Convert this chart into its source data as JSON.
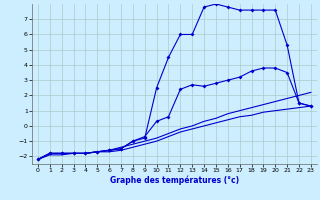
{
  "xlabel": "Graphe des températures (°c)",
  "bg_color": "#cceeff",
  "grid_color": "#aacccc",
  "line_color": "#0000cc",
  "xlim": [
    -0.5,
    23.5
  ],
  "ylim": [
    -2.5,
    8.0
  ],
  "xticks": [
    0,
    1,
    2,
    3,
    4,
    5,
    6,
    7,
    8,
    9,
    10,
    11,
    12,
    13,
    14,
    15,
    16,
    17,
    18,
    19,
    20,
    21,
    22,
    23
  ],
  "yticks": [
    -2,
    -1,
    0,
    1,
    2,
    3,
    4,
    5,
    6,
    7
  ],
  "line1_x": [
    0,
    1,
    2,
    3,
    4,
    5,
    6,
    7,
    8,
    9,
    10,
    11,
    12,
    13,
    14,
    15,
    16,
    17,
    18,
    19,
    20,
    21,
    22,
    23
  ],
  "line1_y": [
    -2.2,
    -1.8,
    -1.8,
    -1.8,
    -1.8,
    -1.7,
    -1.6,
    -1.5,
    -1.0,
    -0.8,
    2.5,
    4.5,
    6.0,
    6.0,
    7.8,
    8.0,
    7.8,
    7.6,
    7.6,
    7.6,
    7.6,
    5.3,
    1.5,
    1.3
  ],
  "line2_x": [
    0,
    1,
    2,
    3,
    4,
    5,
    6,
    7,
    8,
    9,
    10,
    11,
    12,
    13,
    14,
    15,
    16,
    17,
    18,
    19,
    20,
    21,
    22,
    23
  ],
  "line2_y": [
    -2.2,
    -1.8,
    -1.8,
    -1.8,
    -1.8,
    -1.7,
    -1.6,
    -1.5,
    -1.0,
    -0.7,
    0.3,
    0.6,
    2.4,
    2.7,
    2.6,
    2.8,
    3.0,
    3.2,
    3.6,
    3.8,
    3.8,
    3.5,
    1.5,
    1.3
  ],
  "line3_x": [
    0,
    1,
    2,
    3,
    4,
    5,
    6,
    7,
    8,
    9,
    10,
    11,
    12,
    13,
    14,
    15,
    16,
    17,
    18,
    19,
    20,
    21,
    22,
    23
  ],
  "line3_y": [
    -2.2,
    -1.8,
    -1.8,
    -1.8,
    -1.8,
    -1.7,
    -1.6,
    -1.4,
    -1.2,
    -1.0,
    -0.8,
    -0.5,
    -0.2,
    0.0,
    0.3,
    0.5,
    0.8,
    1.0,
    1.2,
    1.4,
    1.6,
    1.8,
    2.0,
    2.2
  ],
  "line4_x": [
    0,
    1,
    2,
    3,
    4,
    5,
    6,
    7,
    8,
    9,
    10,
    11,
    12,
    13,
    14,
    15,
    16,
    17,
    18,
    19,
    20,
    21,
    22,
    23
  ],
  "line4_y": [
    -2.2,
    -1.9,
    -1.9,
    -1.8,
    -1.8,
    -1.7,
    -1.7,
    -1.6,
    -1.4,
    -1.2,
    -1.0,
    -0.7,
    -0.4,
    -0.2,
    0.0,
    0.2,
    0.4,
    0.6,
    0.7,
    0.9,
    1.0,
    1.1,
    1.2,
    1.3
  ]
}
